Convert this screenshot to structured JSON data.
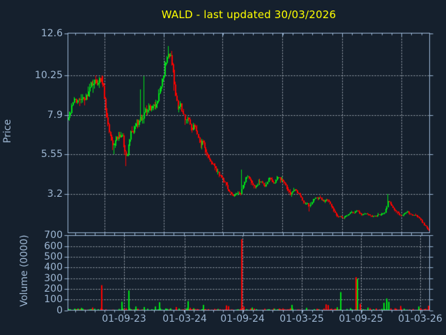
{
  "title": "WALD - last updated 30/03/2026",
  "colors": {
    "background": "#15202d",
    "axis": "#9cb8d8",
    "grid": "#c4cdd6",
    "text": "#9db6d2",
    "title": "#ffff00",
    "up": "#00e018",
    "down": "#fb0300"
  },
  "price_panel": {
    "ylabel": "Price",
    "yticks": [
      {
        "label": "12.6",
        "value": 12.6
      },
      {
        "label": "10.25",
        "value": 10.25
      },
      {
        "label": "7.9",
        "value": 7.9
      },
      {
        "label": "5.55",
        "value": 5.55
      },
      {
        "label": "3.2",
        "value": 3.2
      }
    ]
  },
  "volume_panel": {
    "ylabel": "Volume (0000)",
    "yticks": [
      {
        "label": "700",
        "value": 700
      },
      {
        "label": "600",
        "value": 600
      },
      {
        "label": "500",
        "value": 500
      },
      {
        "label": "400",
        "value": 400
      },
      {
        "label": "300",
        "value": 300
      },
      {
        "label": "200",
        "value": 200
      },
      {
        "label": "100",
        "value": 100
      },
      {
        "label": "0",
        "value": 0
      }
    ]
  },
  "xticklabels": [
    "01-09-23",
    "01-03-24",
    "01-09-24",
    "01-03-25",
    "01-09-25",
    "01-03-26"
  ],
  "chart_data": [
    {
      "type": "candlestick",
      "panel": "price",
      "title": "WALD - last updated 30/03/2026",
      "ylabel": "Price",
      "ylim": [
        0.9,
        12.8
      ],
      "yticks": [
        12.6,
        10.25,
        7.9,
        5.55,
        3.2
      ],
      "xticklabels": [
        "01-09-23",
        "01-03-24",
        "01-09-24",
        "01-03-25",
        "01-09-25",
        "01-03-26"
      ],
      "grid": "dotted",
      "keypoints": [
        [
          98,
          7.8
        ],
        [
          101,
          8.0
        ],
        [
          104,
          8.6
        ],
        [
          108,
          8.8
        ],
        [
          112,
          8.7
        ],
        [
          116,
          8.9
        ],
        [
          120,
          8.8
        ],
        [
          124,
          9.0
        ],
        [
          127,
          9.1
        ],
        [
          129,
          9.6
        ],
        [
          132,
          9.8
        ],
        [
          136,
          9.9
        ],
        [
          139,
          9.7
        ],
        [
          142,
          9.9
        ],
        [
          145,
          10.0
        ],
        [
          147,
          9.9
        ],
        [
          149,
          9.3
        ],
        [
          151,
          8.6
        ],
        [
          153,
          7.9
        ],
        [
          155,
          7.4
        ],
        [
          157,
          7.0
        ],
        [
          159,
          6.6
        ],
        [
          161,
          6.2
        ],
        [
          163,
          6.0
        ],
        [
          165,
          6.3
        ],
        [
          167,
          6.7
        ],
        [
          169,
          6.4
        ],
        [
          171,
          6.8
        ],
        [
          173,
          6.5
        ],
        [
          175,
          6.9
        ],
        [
          177,
          6.3
        ],
        [
          179,
          5.8
        ],
        [
          181,
          5.4
        ],
        [
          183,
          5.6
        ],
        [
          185,
          6.1
        ],
        [
          187,
          6.6
        ],
        [
          189,
          7.0
        ],
        [
          191,
          6.7
        ],
        [
          193,
          7.2
        ],
        [
          196,
          7.6
        ],
        [
          199,
          7.3
        ],
        [
          202,
          7.9
        ],
        [
          205,
          7.6
        ],
        [
          208,
          8.2
        ],
        [
          211,
          8.0
        ],
        [
          214,
          8.4
        ],
        [
          217,
          8.1
        ],
        [
          220,
          8.6
        ],
        [
          223,
          8.4
        ],
        [
          226,
          8.8
        ],
        [
          229,
          9.3
        ],
        [
          232,
          9.8
        ],
        [
          235,
          10.4
        ],
        [
          238,
          11.1
        ],
        [
          241,
          11.7
        ],
        [
          243,
          11.3
        ],
        [
          245,
          11.5
        ],
        [
          247,
          11.0
        ],
        [
          249,
          10.5
        ],
        [
          251,
          9.6
        ],
        [
          253,
          8.9
        ],
        [
          255,
          8.5
        ],
        [
          257,
          8.3
        ],
        [
          259,
          8.6
        ],
        [
          261,
          8.2
        ],
        [
          264,
          7.9
        ],
        [
          267,
          7.5
        ],
        [
          270,
          7.7
        ],
        [
          273,
          7.3
        ],
        [
          276,
          7.0
        ],
        [
          279,
          7.3
        ],
        [
          282,
          6.9
        ],
        [
          285,
          6.5
        ],
        [
          288,
          6.1
        ],
        [
          291,
          6.4
        ],
        [
          294,
          5.9
        ],
        [
          297,
          5.6
        ],
        [
          300,
          5.3
        ],
        [
          303,
          5.1
        ],
        [
          306,
          4.9
        ],
        [
          309,
          4.7
        ],
        [
          312,
          4.5
        ],
        [
          315,
          4.35
        ],
        [
          318,
          4.2
        ],
        [
          321,
          4.0
        ],
        [
          324,
          3.8
        ],
        [
          327,
          3.5
        ],
        [
          330,
          3.3
        ],
        [
          333,
          3.15
        ],
        [
          336,
          3.05
        ],
        [
          339,
          3.2
        ],
        [
          342,
          3.3
        ],
        [
          345,
          3.1
        ],
        [
          348,
          3.5
        ],
        [
          351,
          3.9
        ],
        [
          354,
          4.25
        ],
        [
          357,
          4.2
        ],
        [
          360,
          4.0
        ],
        [
          363,
          3.75
        ],
        [
          366,
          3.55
        ],
        [
          369,
          3.7
        ],
        [
          372,
          3.9
        ],
        [
          375,
          4.0
        ],
        [
          378,
          3.8
        ],
        [
          381,
          3.65
        ],
        [
          384,
          3.9
        ],
        [
          387,
          4.1
        ],
        [
          390,
          3.95
        ],
        [
          393,
          3.75
        ],
        [
          396,
          4.0
        ],
        [
          399,
          4.2
        ],
        [
          402,
          4.1
        ],
        [
          405,
          4.0
        ],
        [
          408,
          3.85
        ],
        [
          411,
          3.6
        ],
        [
          414,
          3.35
        ],
        [
          417,
          3.15
        ],
        [
          420,
          3.35
        ],
        [
          423,
          3.5
        ],
        [
          426,
          3.35
        ],
        [
          429,
          3.2
        ],
        [
          432,
          3.0
        ],
        [
          435,
          2.75
        ],
        [
          438,
          2.55
        ],
        [
          441,
          2.65
        ],
        [
          444,
          2.4
        ],
        [
          447,
          2.6
        ],
        [
          450,
          2.85
        ],
        [
          453,
          2.95
        ],
        [
          456,
          2.9
        ],
        [
          459,
          2.95
        ],
        [
          462,
          2.85
        ],
        [
          465,
          2.75
        ],
        [
          468,
          2.9
        ],
        [
          471,
          2.8
        ],
        [
          474,
          2.6
        ],
        [
          477,
          2.35
        ],
        [
          480,
          2.15
        ],
        [
          483,
          1.95
        ],
        [
          486,
          1.8
        ],
        [
          489,
          1.85
        ],
        [
          492,
          1.7
        ],
        [
          495,
          1.8
        ],
        [
          498,
          1.9
        ],
        [
          501,
          2.0
        ],
        [
          504,
          2.1
        ],
        [
          507,
          2.05
        ],
        [
          510,
          2.1
        ],
        [
          513,
          2.15
        ],
        [
          516,
          2.05
        ],
        [
          519,
          1.95
        ],
        [
          522,
          2.0
        ],
        [
          525,
          2.05
        ],
        [
          528,
          1.95
        ],
        [
          531,
          1.9
        ],
        [
          534,
          1.85
        ],
        [
          537,
          1.9
        ],
        [
          540,
          1.85
        ],
        [
          543,
          1.95
        ],
        [
          546,
          1.9
        ],
        [
          549,
          2.0
        ],
        [
          552,
          2.1
        ],
        [
          555,
          2.35
        ],
        [
          557,
          2.8
        ],
        [
          560,
          2.65
        ],
        [
          563,
          2.45
        ],
        [
          566,
          2.25
        ],
        [
          569,
          2.1
        ],
        [
          572,
          2.0
        ],
        [
          575,
          1.9
        ],
        [
          578,
          1.9
        ],
        [
          581,
          2.05
        ],
        [
          584,
          2.15
        ],
        [
          587,
          2.05
        ],
        [
          590,
          1.95
        ],
        [
          593,
          1.9
        ],
        [
          596,
          1.95
        ],
        [
          599,
          1.85
        ],
        [
          602,
          1.75
        ],
        [
          605,
          1.55
        ],
        [
          608,
          1.4
        ],
        [
          611,
          1.25
        ],
        [
          614,
          1.1
        ],
        [
          616,
          1.0
        ]
      ],
      "wick_events": [
        [
          98,
          "low",
          7.15
        ],
        [
          163,
          "low",
          5.55
        ],
        [
          181,
          "low",
          4.85
        ],
        [
          202,
          "high",
          9.4
        ],
        [
          208,
          "high",
          10.2
        ],
        [
          241,
          "high",
          12.0
        ],
        [
          348,
          "high",
          4.65
        ],
        [
          444,
          "low",
          2.15
        ],
        [
          557,
          "high",
          3.2
        ]
      ]
    },
    {
      "type": "bar",
      "panel": "volume",
      "ylabel": "Volume (0000)",
      "ylim": [
        0,
        700
      ],
      "yticks": [
        700,
        600,
        500,
        400,
        300,
        200,
        100,
        0
      ],
      "grid": "dotted",
      "spikes": [
        [
          133,
          25,
          "r"
        ],
        [
          146,
          235,
          "r"
        ],
        [
          175,
          80,
          "g"
        ],
        [
          185,
          185,
          "g"
        ],
        [
          195,
          35,
          "g"
        ],
        [
          207,
          30,
          "g"
        ],
        [
          223,
          35,
          "g"
        ],
        [
          229,
          75,
          "g"
        ],
        [
          253,
          30,
          "r"
        ],
        [
          270,
          85,
          "g"
        ],
        [
          292,
          50,
          "g"
        ],
        [
          325,
          45,
          "r"
        ],
        [
          328,
          38,
          "r"
        ],
        [
          347,
          665,
          "r"
        ],
        [
          350,
          35,
          "r"
        ],
        [
          362,
          25,
          "g"
        ],
        [
          419,
          50,
          "g"
        ],
        [
          440,
          22,
          "g"
        ],
        [
          468,
          55,
          "r"
        ],
        [
          471,
          48,
          "r"
        ],
        [
          484,
          28,
          "g"
        ],
        [
          489,
          170,
          "g"
        ],
        [
          511,
          310,
          "r"
        ],
        [
          513,
          295,
          "g"
        ],
        [
          517,
          60,
          "r"
        ],
        [
          528,
          25,
          "g"
        ],
        [
          551,
          70,
          "g"
        ],
        [
          555,
          110,
          "g"
        ],
        [
          558,
          80,
          "g"
        ],
        [
          575,
          40,
          "r"
        ],
        [
          601,
          35,
          "g"
        ],
        [
          615,
          42,
          "r"
        ]
      ],
      "baseline_noise_max": 22
    }
  ]
}
